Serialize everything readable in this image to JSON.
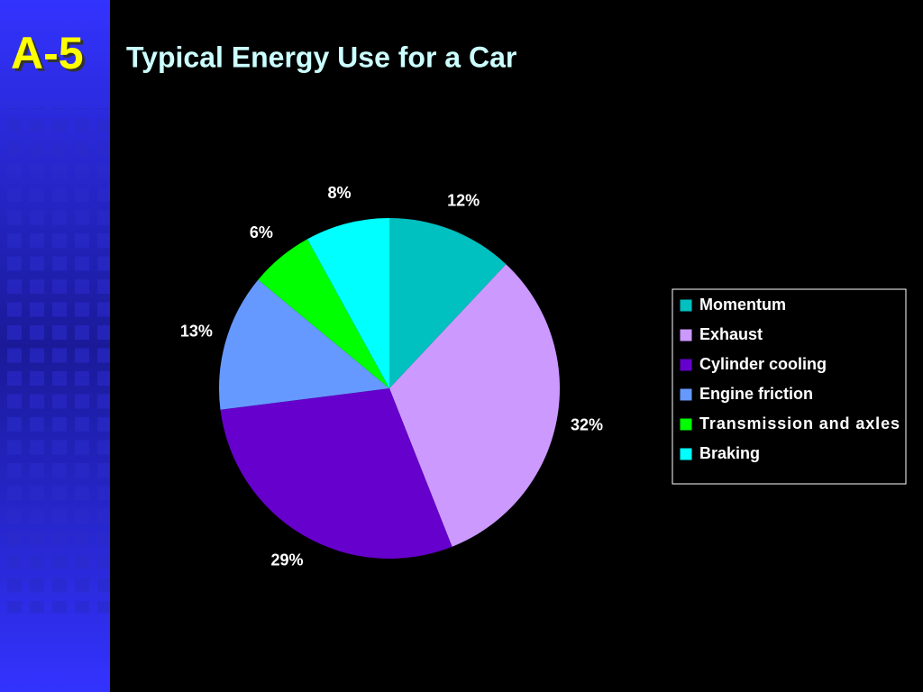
{
  "slide_label": "A-5",
  "chart_data": {
    "type": "pie",
    "title": "Typical Energy Use for a Car",
    "categories": [
      "Momentum",
      "Exhaust",
      "Cylinder cooling",
      "Engine friction",
      "Transmission and axles",
      "Braking"
    ],
    "values": [
      12,
      32,
      29,
      13,
      6,
      8
    ],
    "value_labels": [
      "12%",
      "32%",
      "29%",
      "13%",
      "6%",
      "8%"
    ],
    "colors": [
      "#00c0c0",
      "#cc99ff",
      "#6600cc",
      "#6699ff",
      "#00ff00",
      "#00ffff"
    ],
    "legend": "right"
  }
}
